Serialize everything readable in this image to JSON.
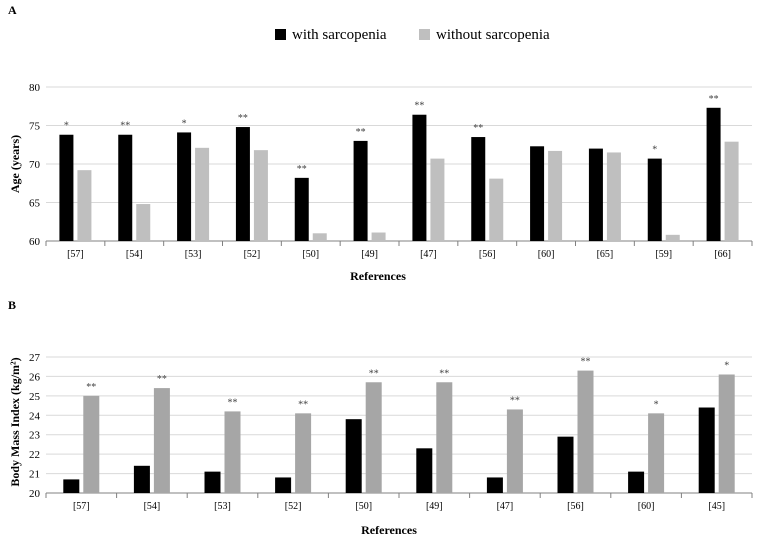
{
  "legend": {
    "items": [
      {
        "label": "with sarcopenia",
        "color": "#000000"
      },
      {
        "label": "without sarcopenia",
        "color": "#bfbfbf"
      }
    ]
  },
  "chart_data": [
    {
      "type": "bar",
      "panel_label": "A",
      "categories": [
        "[57]",
        "[54]",
        "[53]",
        "[52]",
        "[50]",
        "[49]",
        "[47]",
        "[56]",
        "[60]",
        "[65]",
        "[59]",
        "[66]"
      ],
      "series": [
        {
          "name": "with sarcopenia",
          "color": "#000000",
          "values": [
            73.8,
            73.8,
            74.1,
            74.8,
            68.2,
            73.0,
            76.4,
            73.5,
            72.3,
            72.0,
            70.7,
            77.3
          ]
        },
        {
          "name": "without sarcopenia",
          "color": "#bfbfbf",
          "values": [
            69.2,
            64.8,
            72.1,
            71.8,
            61.0,
            61.1,
            70.7,
            68.1,
            71.7,
            71.5,
            60.8,
            72.9
          ]
        }
      ],
      "significance": [
        "*",
        "**",
        "*",
        "**",
        "**",
        "**",
        "**",
        "**",
        "",
        "",
        "*",
        "**"
      ],
      "significance_on": "with sarcopenia",
      "xlabel": "References",
      "ylabel": "Age (years)",
      "ylim": [
        60,
        80
      ],
      "yticks": [
        60,
        65,
        70,
        75,
        80
      ],
      "grid": true
    },
    {
      "type": "bar",
      "panel_label": "B",
      "categories": [
        "[57]",
        "[54]",
        "[53]",
        "[52]",
        "[50]",
        "[49]",
        "[47]",
        "[56]",
        "[60]",
        "[45]"
      ],
      "series": [
        {
          "name": "with sarcopenia",
          "color": "#000000",
          "values": [
            20.7,
            21.4,
            21.1,
            20.8,
            23.8,
            22.3,
            20.8,
            22.9,
            21.1,
            24.4
          ]
        },
        {
          "name": "without sarcopenia",
          "color": "#a6a6a6",
          "values": [
            25.0,
            25.4,
            24.2,
            24.1,
            25.7,
            25.7,
            24.3,
            26.3,
            24.1,
            26.1
          ]
        }
      ],
      "significance": [
        "**",
        "**",
        "**",
        "**",
        "**",
        "**",
        "**",
        "**",
        "*",
        "*"
      ],
      "significance_on": "without sarcopenia",
      "xlabel": "References",
      "ylabel": "Body Mass Index (kg/m²)",
      "ylim": [
        20,
        27
      ],
      "yticks": [
        20,
        21,
        22,
        23,
        24,
        25,
        26,
        27
      ],
      "grid": true
    }
  ]
}
